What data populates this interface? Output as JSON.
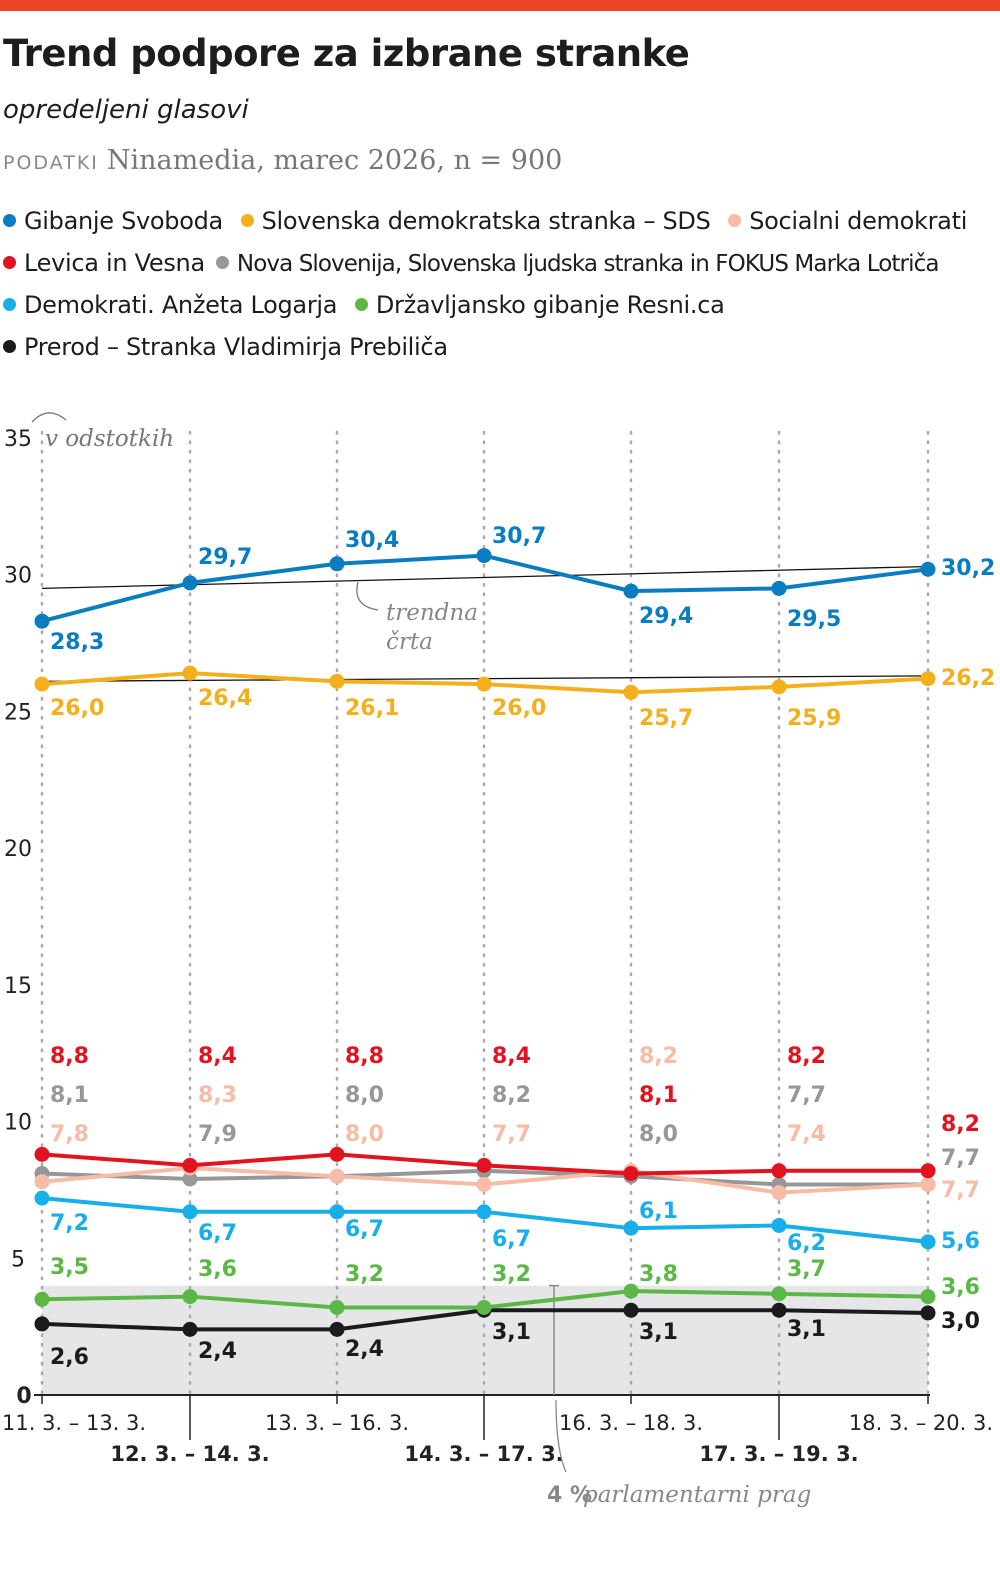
{
  "header": {
    "title": "Trend podpore za izbrane stranke",
    "subtitle": "opredeljeni glasovi",
    "source_label": "PODATKI",
    "source": "Ninamedia, marec 2026, n = 900",
    "accent_color": "#ef4423"
  },
  "chart_data": {
    "type": "line",
    "title": "Trend podpore za izbrane stranke",
    "subtitle": "opredeljeni glasovi",
    "ylabel": "v odstotkih",
    "ylim": [
      0,
      35
    ],
    "yticks": [
      "0",
      "5",
      "10",
      "15",
      "20",
      "25",
      "30",
      "35"
    ],
    "grid": "vertical dotted",
    "legend_position": "top",
    "categories": [
      "11. 3. – 13. 3.",
      "12. 3. – 14. 3.",
      "13. 3. – 16. 3.",
      "14. 3. – 17. 3.",
      "16. 3. – 18. 3.",
      "17. 3. – 19. 3.",
      "18. 3. – 20. 3."
    ],
    "series": [
      {
        "name": "Gibanje Svoboda",
        "color": "#0a7dc1",
        "values": [
          28.3,
          29.7,
          30.4,
          30.7,
          29.4,
          29.5,
          30.2
        ],
        "labels": [
          "28,3",
          "29,7",
          "30,4",
          "30,7",
          "29,4",
          "29,5",
          "30,2"
        ]
      },
      {
        "name": "Slovenska demokratska stranka – SDS",
        "color": "#f4b01c",
        "values": [
          26.0,
          26.4,
          26.1,
          26.0,
          25.7,
          25.9,
          26.2
        ],
        "labels": [
          "26,0",
          "26,4",
          "26,1",
          "26,0",
          "25,7",
          "25,9",
          "26,2"
        ]
      },
      {
        "name": "Socialni demokrati",
        "color": "#f6bca6",
        "values": [
          7.8,
          8.3,
          8.0,
          7.7,
          8.2,
          7.4,
          7.7
        ],
        "labels": [
          "7,8",
          "8,3",
          "8,0",
          "7,7",
          "8,2",
          "7,4",
          "7,7"
        ]
      },
      {
        "name": "Levica in Vesna",
        "color": "#e3121f",
        "values": [
          8.8,
          8.4,
          8.8,
          8.4,
          8.1,
          8.2,
          8.2
        ],
        "labels": [
          "8,8",
          "8,4",
          "8,8",
          "8,4",
          "8,1",
          "8,2",
          "8,2"
        ]
      },
      {
        "name": "Nova Slovenija, Slovenska ljudska stranka in FOKUS Marka Lotriča",
        "color": "#979797",
        "values": [
          8.1,
          7.9,
          8.0,
          8.2,
          8.0,
          7.7,
          7.7
        ],
        "labels": [
          "8,1",
          "7,9",
          "8,0",
          "8,2",
          "8,0",
          "7,7",
          "7,7"
        ]
      },
      {
        "name": "Demokrati. Anžeta Logarja",
        "color": "#17aee9",
        "values": [
          7.2,
          6.7,
          6.7,
          6.7,
          6.1,
          6.2,
          5.6
        ],
        "labels": [
          "7,2",
          "6,7",
          "6,7",
          "6,7",
          "6,1",
          "6,2",
          "5,6"
        ]
      },
      {
        "name": "Državljansko gibanje Resni.ca",
        "color": "#5bb846",
        "values": [
          3.5,
          3.6,
          3.2,
          3.2,
          3.8,
          3.7,
          3.6
        ],
        "labels": [
          "3,5",
          "3,6",
          "3,2",
          "3,2",
          "3,8",
          "3,7",
          "3,6"
        ]
      },
      {
        "name": "Prerod – Stranka Vladimirja Prebiliča",
        "color": "#1b1b1d",
        "values": [
          2.6,
          2.4,
          2.4,
          3.1,
          3.1,
          3.1,
          3.0
        ],
        "labels": [
          "2,6",
          "2,4",
          "2,4",
          "3,1",
          "3,1",
          "3,1",
          "3,0"
        ]
      }
    ],
    "trendlines": [
      {
        "series": "Gibanje Svoboda",
        "from": 29.5,
        "to": 30.3
      },
      {
        "series": "Slovenska demokratska stranka – SDS",
        "from": 26.1,
        "to": 26.3
      }
    ],
    "annotations": {
      "trend": [
        "trendna",
        "črta"
      ],
      "threshold_value": 4,
      "threshold_bold": "4 %",
      "threshold_text": "parlamentarni prag"
    }
  }
}
